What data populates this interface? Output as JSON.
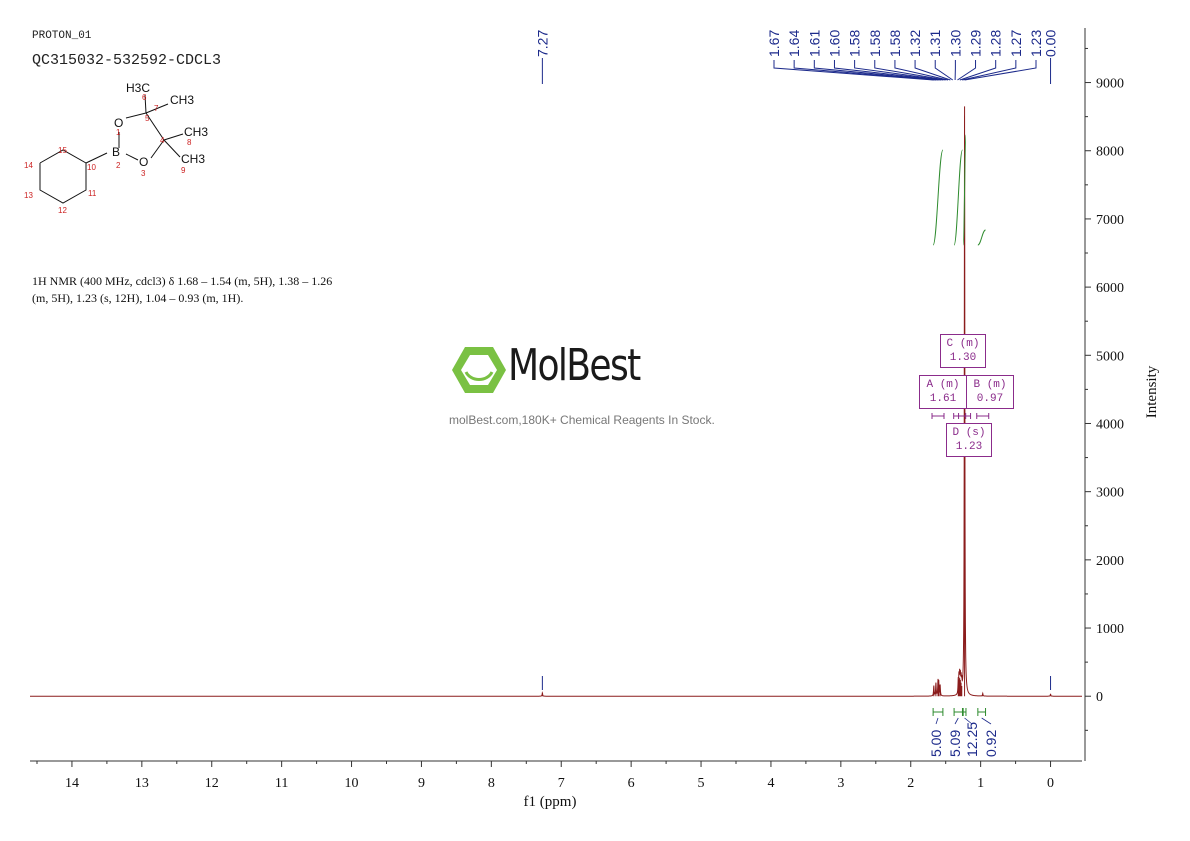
{
  "header": {
    "experiment": "PROTON_01",
    "sample_id": "QC315032-532592-CDCL3"
  },
  "nmr_description": {
    "line1": "1H NMR (400 MHz, cdcl3) δ 1.68 – 1.54 (m, 5H), 1.38 – 1.26",
    "line2": "(m, 5H), 1.23 (s, 12H), 1.04 – 0.93 (m, 1H)."
  },
  "watermark": {
    "brand": "MolBest",
    "tagline": "molBest.com,180K+ Chemical Reagents In Stock."
  },
  "structure": {
    "atoms": [
      "B",
      "O",
      "O"
    ],
    "groups": [
      "H3C",
      "CH3",
      "CH3",
      "CH3"
    ],
    "numbers": [
      "1",
      "2",
      "3",
      "4",
      "5",
      "6",
      "7",
      "8",
      "9",
      "10",
      "11",
      "12",
      "13",
      "14",
      "15"
    ]
  },
  "colors": {
    "spectrum": "#8b1c1c",
    "peak_labels": "#1c2a8b",
    "integral": "#2e8b2e",
    "multiplet_box": "#8b2c8b"
  },
  "chart_data": {
    "type": "line",
    "xlabel": "f1 (ppm)",
    "ylabel": "Intensity",
    "xlim": [
      14.6,
      -0.45
    ],
    "ylim": [
      -950,
      9800
    ],
    "x_ticks": [
      14,
      13,
      12,
      11,
      10,
      9,
      8,
      7,
      6,
      5,
      4,
      3,
      2,
      1,
      0
    ],
    "y_ticks": [
      0,
      1000,
      2000,
      3000,
      4000,
      5000,
      6000,
      7000,
      8000,
      9000
    ],
    "peak_labels_top": [
      "1.67",
      "1.64",
      "1.61",
      "1.60",
      "1.58",
      "1.58",
      "1.58",
      "1.32",
      "1.31",
      "1.30",
      "1.29",
      "1.28",
      "1.27",
      "1.23"
    ],
    "peak_labels_single": [
      "7.27",
      "0.00"
    ],
    "peaks": [
      {
        "ppm": 7.27,
        "height": 50
      },
      {
        "ppm": 1.67,
        "height": 150
      },
      {
        "ppm": 1.64,
        "height": 190
      },
      {
        "ppm": 1.61,
        "height": 210
      },
      {
        "ppm": 1.6,
        "height": 200
      },
      {
        "ppm": 1.58,
        "height": 160
      },
      {
        "ppm": 1.32,
        "height": 200
      },
      {
        "ppm": 1.31,
        "height": 250
      },
      {
        "ppm": 1.3,
        "height": 270
      },
      {
        "ppm": 1.29,
        "height": 240
      },
      {
        "ppm": 1.28,
        "height": 200
      },
      {
        "ppm": 1.27,
        "height": 150
      },
      {
        "ppm": 1.23,
        "height": 8650
      },
      {
        "ppm": 0.97,
        "height": 40
      },
      {
        "ppm": 0.0,
        "height": 30
      }
    ],
    "integrals": [
      {
        "from": 1.68,
        "to": 1.54,
        "value": "5.00"
      },
      {
        "from": 1.38,
        "to": 1.26,
        "value": "5.09"
      },
      {
        "from": 1.25,
        "to": 1.21,
        "value": "12.25"
      },
      {
        "from": 1.04,
        "to": 0.93,
        "value": "0.92"
      }
    ],
    "multiplets": [
      {
        "label": "A",
        "type": "(m)",
        "shift": "1.61"
      },
      {
        "label": "B",
        "type": "(m)",
        "shift": "0.97"
      },
      {
        "label": "C",
        "type": "(m)",
        "shift": "1.30"
      },
      {
        "label": "D",
        "type": "(s)",
        "shift": "1.23"
      }
    ]
  }
}
